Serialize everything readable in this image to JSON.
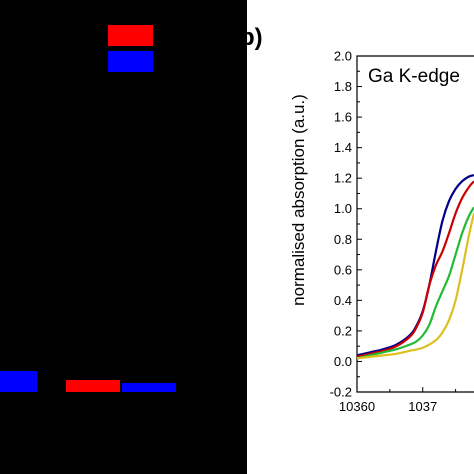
{
  "left_panel": {
    "background": "#000000",
    "blocks": [
      {
        "name": "top-red-block",
        "color": "#ff0000"
      },
      {
        "name": "top-blue-block",
        "color": "#0000ff"
      },
      {
        "name": "left-blue-block",
        "color": "#0000ff"
      },
      {
        "name": "bottom-red-block",
        "color": "#ff0000"
      },
      {
        "name": "bottom-blue-block",
        "color": "#0000ff"
      }
    ]
  },
  "chart_data": {
    "type": "line",
    "panel_label": "b)",
    "annotation": "Ga K-edge",
    "xlabel": "",
    "ylabel": "normalised absorption (a.u.)",
    "xlim": [
      10360,
      10380
    ],
    "ylim": [
      -0.2,
      2.0
    ],
    "xticks": [
      "10360",
      "1037"
    ],
    "yticks": [
      "-0.2",
      "0.0",
      "0.2",
      "0.4",
      "0.6",
      "0.8",
      "1.0",
      "1.2",
      "1.4",
      "1.6",
      "1.8",
      "2.0"
    ],
    "grid": false,
    "series": [
      {
        "color": "#00008b",
        "x": [
          10360,
          10362,
          10364,
          10366,
          10368,
          10369,
          10370,
          10371,
          10372,
          10373,
          10374,
          10375,
          10376,
          10377,
          10377.8
        ],
        "y": [
          0.04,
          0.06,
          0.08,
          0.11,
          0.17,
          0.23,
          0.33,
          0.5,
          0.72,
          0.92,
          1.05,
          1.13,
          1.18,
          1.21,
          1.22
        ]
      },
      {
        "color": "#cc0000",
        "x": [
          10360,
          10362,
          10364,
          10366,
          10368,
          10369,
          10370,
          10371,
          10372,
          10373,
          10374,
          10375,
          10376,
          10377,
          10377.8
        ],
        "y": [
          0.03,
          0.05,
          0.07,
          0.1,
          0.16,
          0.22,
          0.32,
          0.5,
          0.63,
          0.72,
          0.84,
          0.97,
          1.07,
          1.14,
          1.18
        ]
      },
      {
        "color": "#22bb33",
        "x": [
          10360,
          10362,
          10364,
          10366,
          10368,
          10369,
          10370,
          10371,
          10372,
          10373,
          10374,
          10375,
          10376,
          10377,
          10377.8
        ],
        "y": [
          0.02,
          0.04,
          0.06,
          0.08,
          0.11,
          0.13,
          0.17,
          0.24,
          0.36,
          0.46,
          0.56,
          0.7,
          0.84,
          0.95,
          1.01
        ]
      },
      {
        "color": "#ddc020",
        "x": [
          10360,
          10362,
          10364,
          10366,
          10368,
          10370,
          10372,
          10373,
          10374,
          10375,
          10376,
          10377,
          10377.8
        ],
        "y": [
          0.02,
          0.03,
          0.04,
          0.05,
          0.07,
          0.09,
          0.14,
          0.19,
          0.27,
          0.4,
          0.6,
          0.82,
          0.97
        ]
      }
    ]
  }
}
